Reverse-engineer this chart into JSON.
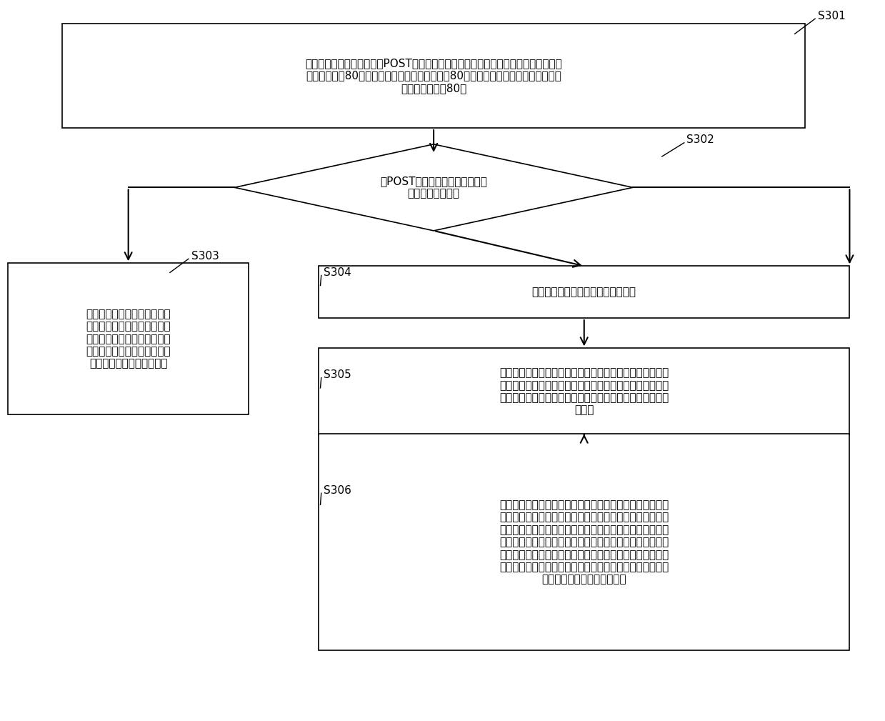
{
  "background_color": "#ffffff",
  "s301_text": "在服务器处于系统上电自检POST阶段时，基本管理控制器控制诊断面板的数码管显示\n服务器系统的80码信息，同时控制数码管下方的80码指示单元显示信号，以便于指示\n数码管显示的是80码",
  "s302_text": "在POST阶段结束后，判断服务器\n系统是否有故障点",
  "s303_text": "控制诊断面板的数码管显示服\n务器系统的总功耗信息，同时\n控制数码管下方的总功耗指示\n单元显示信号，以便于指示数\n码管显示的是系统的总功耗",
  "s304_text": "基本管理控制器控制声光报警器启动",
  "s305_text": "基本管理控制器控制诊断面板与服务器系统故障点的故障类\n型对应的故障指示单元显示两种不同的信号，以使得故障指\n示单元在显示所有故障点的故障类型时，突出显示其中一个\n故障点",
  "s306_text": "在突出显示其中一个故障点的时间内，基本管理控制器控制\n诊断面板的数码管显示故障点的故障位置信息，同时控制数\n码管下方的故障位置指示单元显示信号，以便于指示数码管\n显示的是故障位置，或分别先后显示故障点的故障位置信息\n和故障代码信息，同时分别先后控制数码管下方的故障位置\n指示单元和故障代码指示单元显示信号，以便于指示数码管\n显示的是故障位置与故障代码",
  "main_font_size": 11,
  "label_font_size": 11,
  "step_font_size": 11
}
